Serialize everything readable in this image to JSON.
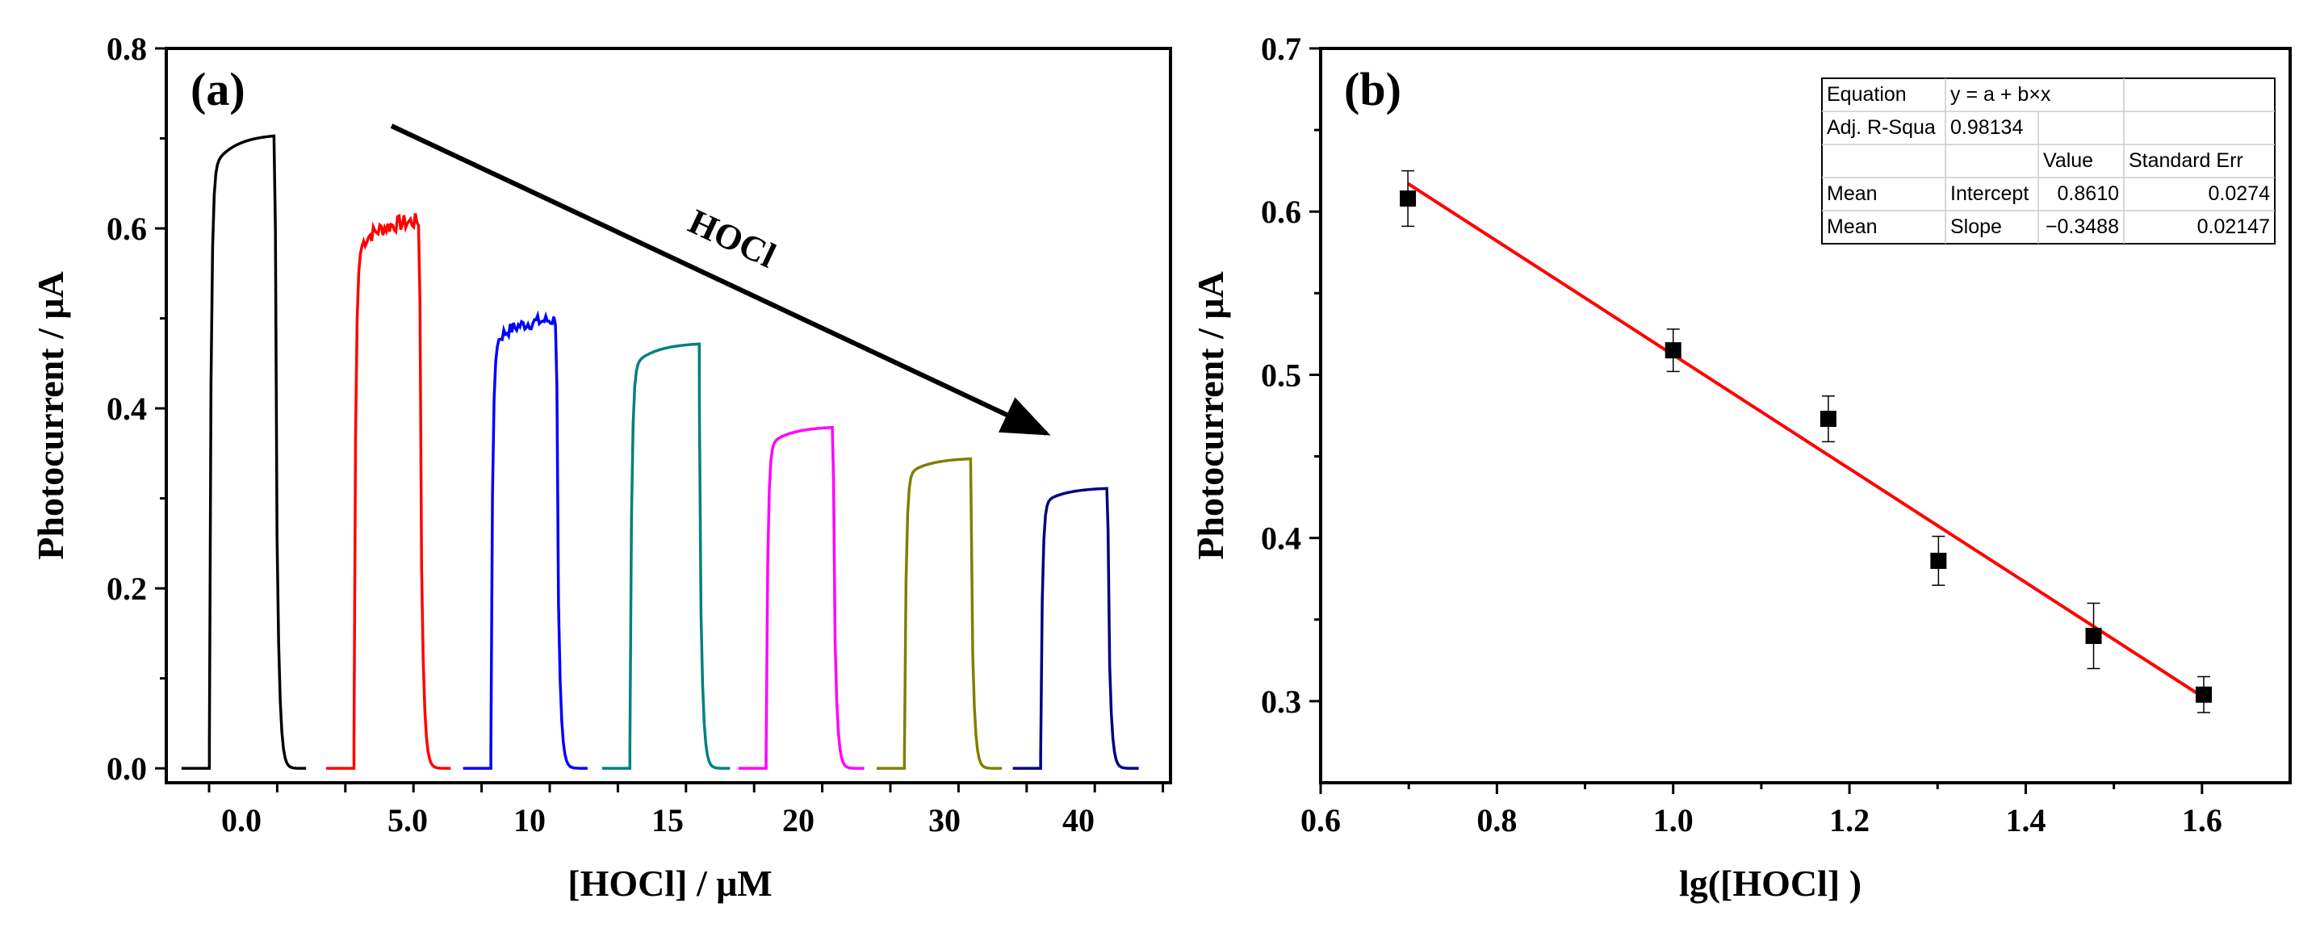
{
  "chart_data": [
    {
      "panel": "(a)",
      "type": "line",
      "title": "",
      "xlabel": "[HOCl] / μM",
      "ylabel": "Photocurrent / μA",
      "ylim": [
        -0.016,
        0.8
      ],
      "yticks": [
        0.0,
        0.2,
        0.4,
        0.6,
        0.8
      ],
      "ytick_labels": [
        "0.0",
        "0.2",
        "0.4",
        "0.6",
        "0.8"
      ],
      "x_category_labels": [
        "0.0",
        "5.0",
        "10",
        "15",
        "20",
        "30",
        "40"
      ],
      "annotation": "HOCl",
      "series": [
        {
          "name": "0.0",
          "color": "#000000",
          "plateau": 0.705,
          "noisy": false
        },
        {
          "name": "5.0",
          "color": "#ff0000",
          "plateau": 0.61,
          "noisy": true
        },
        {
          "name": "10",
          "color": "#0000ff",
          "plateau": 0.5,
          "noisy": true
        },
        {
          "name": "15",
          "color": "#008080",
          "plateau": 0.473,
          "noisy": false
        },
        {
          "name": "20",
          "color": "#ff00ff",
          "plateau": 0.38,
          "noisy": false
        },
        {
          "name": "30",
          "color": "#808000",
          "plateau": 0.345,
          "noisy": false
        },
        {
          "name": "40",
          "color": "#000080",
          "plateau": 0.312,
          "noisy": false
        }
      ]
    },
    {
      "panel": "(b)",
      "type": "scatter",
      "title": "",
      "xlabel": "lg([HOCl] )",
      "ylabel": "Photocurrent / μA",
      "xlim": [
        0.6,
        1.7
      ],
      "ylim": [
        0.25,
        0.7
      ],
      "xticks": [
        0.6,
        0.8,
        1.0,
        1.2,
        1.4,
        1.6
      ],
      "xtick_labels": [
        "0.6",
        "0.8",
        "1.0",
        "1.2",
        "1.4",
        "1.6"
      ],
      "yticks": [
        0.3,
        0.4,
        0.5,
        0.6,
        0.7
      ],
      "ytick_labels": [
        "0.3",
        "0.4",
        "0.5",
        "0.6",
        "0.7"
      ],
      "points": {
        "x": [
          0.699,
          1.0,
          1.176,
          1.301,
          1.477,
          1.602
        ],
        "y": [
          0.608,
          0.515,
          0.473,
          0.386,
          0.34,
          0.304
        ],
        "err": [
          0.017,
          0.013,
          0.014,
          0.015,
          0.02,
          0.011
        ],
        "color": "#000000"
      },
      "fit": {
        "intercept": 0.861,
        "slope": -0.3488,
        "x_range": [
          0.699,
          1.602
        ],
        "color": "#ff0000"
      },
      "fit_table": {
        "rows": [
          [
            "Equation",
            "y = a + b×x",
            "",
            ""
          ],
          [
            "Adj. R-Squa",
            "0.98134",
            "",
            ""
          ],
          [
            "",
            "",
            "Value",
            "Standard Err"
          ],
          [
            "Mean",
            "Intercept",
            "0.8610",
            "0.0274"
          ],
          [
            "Mean",
            "Slope",
            "−0.3488",
            "0.02147"
          ]
        ]
      }
    }
  ]
}
